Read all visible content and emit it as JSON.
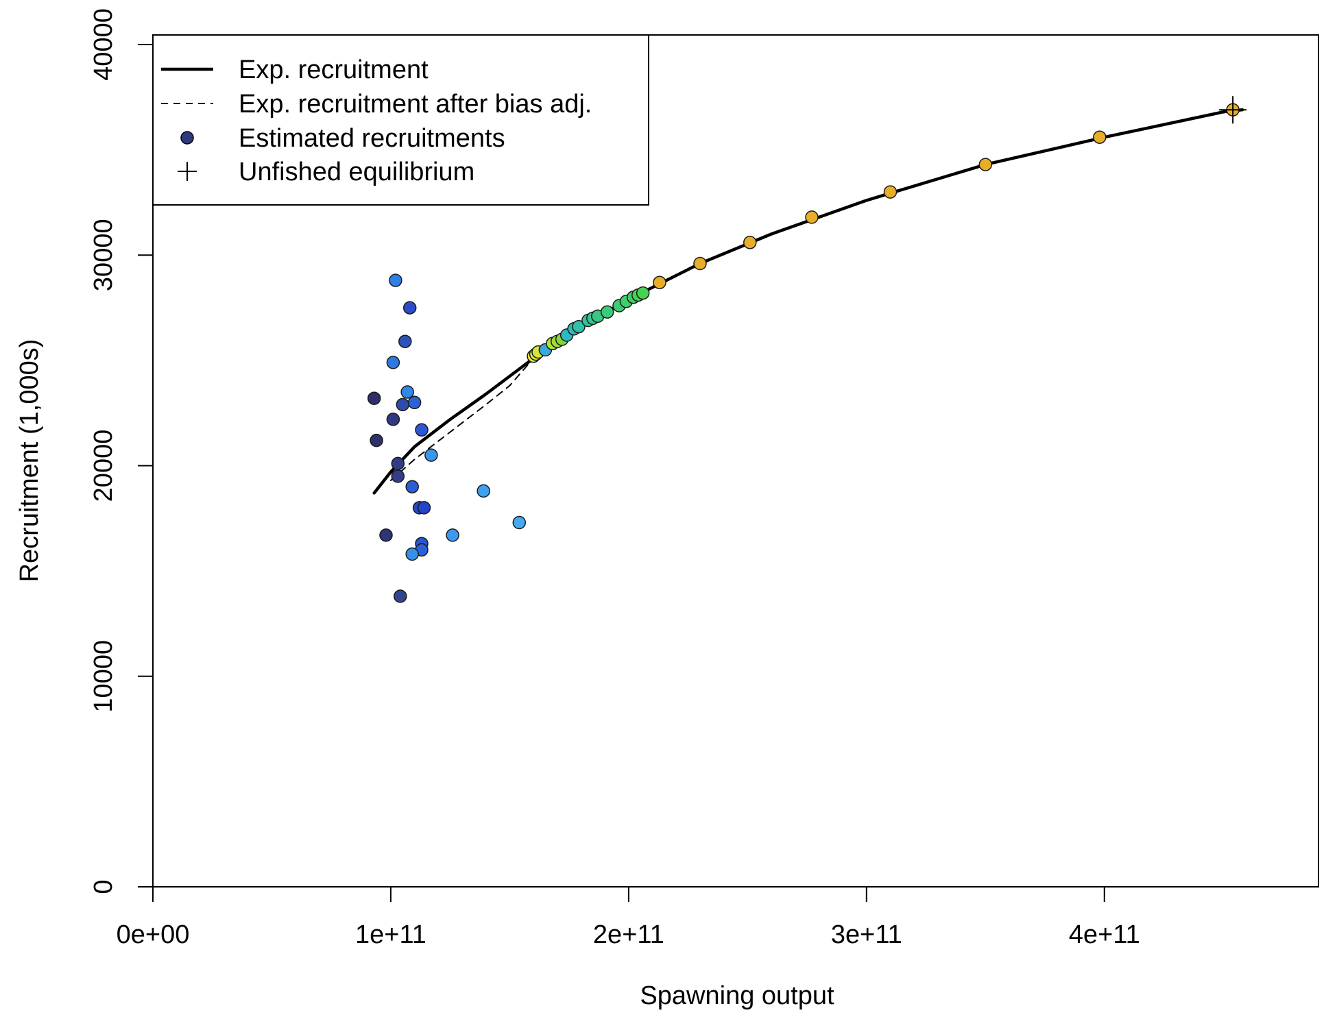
{
  "chart_data": {
    "type": "scatter",
    "title": "",
    "xlabel": "Spawning output",
    "ylabel": "Recruitment (1,000s)",
    "xlim": [
      0,
      490000000000
    ],
    "ylim": [
      0,
      40000
    ],
    "x_ticks": [
      0,
      100000000000,
      200000000000,
      300000000000,
      400000000000
    ],
    "x_tick_labels": [
      "0e+00",
      "1e+11",
      "2e+11",
      "3e+11",
      "4e+11"
    ],
    "y_ticks": [
      0,
      10000,
      20000,
      30000,
      40000
    ],
    "y_tick_labels": [
      "0",
      "10000",
      "20000",
      "30000",
      "40000"
    ],
    "grid": false,
    "legend": {
      "placement": "top-left",
      "entries": [
        {
          "label": "Exp. recruitment",
          "symbol": "solid-line"
        },
        {
          "label": "Exp. recruitment after bias adj.",
          "symbol": "dashed-line"
        },
        {
          "label": "Estimated recruitments",
          "symbol": "circle",
          "color": "#2e3a7e"
        },
        {
          "label": "Unfished equilibrium",
          "symbol": "plus"
        }
      ]
    },
    "series": [
      {
        "name": "Exp. recruitment",
        "kind": "line",
        "style": "solid",
        "color": "#000000",
        "points": [
          [
            93000000000,
            18700
          ],
          [
            100000000000,
            19700
          ],
          [
            110000000000,
            20900
          ],
          [
            125000000000,
            22200
          ],
          [
            140000000000,
            23400
          ],
          [
            160000000000,
            25100
          ],
          [
            180000000000,
            26600
          ],
          [
            200000000000,
            27900
          ],
          [
            230000000000,
            29600
          ],
          [
            260000000000,
            31000
          ],
          [
            300000000000,
            32600
          ],
          [
            350000000000,
            34300
          ],
          [
            400000000000,
            35600
          ],
          [
            450000000000,
            36800
          ],
          [
            458000000000,
            36900
          ]
        ]
      },
      {
        "name": "Exp. recruitment after bias adj.",
        "kind": "line",
        "style": "dashed",
        "color": "#000000",
        "points": [
          [
            100000000000,
            19300
          ],
          [
            110000000000,
            20300
          ],
          [
            125000000000,
            21600
          ],
          [
            140000000000,
            22900
          ],
          [
            150000000000,
            23800
          ],
          [
            160000000000,
            25100
          ],
          [
            180000000000,
            26600
          ],
          [
            200000000000,
            27900
          ],
          [
            230000000000,
            29600
          ],
          [
            260000000000,
            31000
          ],
          [
            300000000000,
            32600
          ],
          [
            350000000000,
            34300
          ],
          [
            400000000000,
            35600
          ],
          [
            450000000000,
            36800
          ],
          [
            458000000000,
            36900
          ]
        ]
      },
      {
        "name": "Estimated recruitments",
        "kind": "scatter",
        "points": [
          {
            "x": 93000000000,
            "y": 23200,
            "color": "#2e2f6a"
          },
          {
            "x": 94000000000,
            "y": 21200,
            "color": "#2e3170"
          },
          {
            "x": 98000000000,
            "y": 16700,
            "color": "#2f3475"
          },
          {
            "x": 101000000000,
            "y": 22200,
            "color": "#303a80"
          },
          {
            "x": 103000000000,
            "y": 20100,
            "color": "#303c85"
          },
          {
            "x": 103000000000,
            "y": 19500,
            "color": "#313f8a"
          },
          {
            "x": 104000000000,
            "y": 13800,
            "color": "#32448f"
          },
          {
            "x": 105000000000,
            "y": 22900,
            "color": "#2f4bb0"
          },
          {
            "x": 106000000000,
            "y": 25900,
            "color": "#2f52b8"
          },
          {
            "x": 108000000000,
            "y": 27500,
            "color": "#2d4cc8"
          },
          {
            "x": 109000000000,
            "y": 19000,
            "color": "#2c5cd6"
          },
          {
            "x": 110000000000,
            "y": 23000,
            "color": "#2a62d8"
          },
          {
            "x": 112000000000,
            "y": 18000,
            "color": "#2648c8"
          },
          {
            "x": 113000000000,
            "y": 16300,
            "color": "#2a56d4"
          },
          {
            "x": 113000000000,
            "y": 16000,
            "color": "#2b60d8"
          },
          {
            "x": 113000000000,
            "y": 21700,
            "color": "#2c58d8"
          },
          {
            "x": 114000000000,
            "y": 18000,
            "color": "#2444cc"
          },
          {
            "x": 101000000000,
            "y": 24900,
            "color": "#2f78e0"
          },
          {
            "x": 102000000000,
            "y": 28800,
            "color": "#2f80e4"
          },
          {
            "x": 107000000000,
            "y": 23500,
            "color": "#3288e6"
          },
          {
            "x": 109000000000,
            "y": 15800,
            "color": "#3590e8"
          },
          {
            "x": 117000000000,
            "y": 20500,
            "color": "#3a96ea"
          },
          {
            "x": 126000000000,
            "y": 16700,
            "color": "#3b9aec"
          },
          {
            "x": 139000000000,
            "y": 18800,
            "color": "#3fa0ee"
          },
          {
            "x": 154000000000,
            "y": 17300,
            "color": "#45a8f0"
          },
          {
            "x": 160000000000,
            "y": 25200,
            "color": "#e6e84a"
          },
          {
            "x": 161000000000,
            "y": 25300,
            "color": "#dde840"
          },
          {
            "x": 162000000000,
            "y": 25400,
            "color": "#d2e63c"
          },
          {
            "x": 165000000000,
            "y": 25500,
            "color": "#3aa8d8"
          },
          {
            "x": 168000000000,
            "y": 25800,
            "color": "#b2e234"
          },
          {
            "x": 170000000000,
            "y": 25900,
            "color": "#9ede34"
          },
          {
            "x": 172000000000,
            "y": 26000,
            "color": "#86d838"
          },
          {
            "x": 174000000000,
            "y": 26200,
            "color": "#2fb8c4"
          },
          {
            "x": 177000000000,
            "y": 26500,
            "color": "#30bcb6"
          },
          {
            "x": 179000000000,
            "y": 26600,
            "color": "#32c0a8"
          },
          {
            "x": 183000000000,
            "y": 26900,
            "color": "#34c49a"
          },
          {
            "x": 185000000000,
            "y": 27000,
            "color": "#36c68e"
          },
          {
            "x": 187000000000,
            "y": 27100,
            "color": "#38c884"
          },
          {
            "x": 191000000000,
            "y": 27300,
            "color": "#3aca7c"
          },
          {
            "x": 196000000000,
            "y": 27600,
            "color": "#3ccc74"
          },
          {
            "x": 199000000000,
            "y": 27800,
            "color": "#3ece6c"
          },
          {
            "x": 202000000000,
            "y": 28000,
            "color": "#40d064"
          },
          {
            "x": 204000000000,
            "y": 28100,
            "color": "#44d05c"
          },
          {
            "x": 206000000000,
            "y": 28200,
            "color": "#48d254"
          },
          {
            "x": 213000000000,
            "y": 28700,
            "color": "#e8ae2a"
          },
          {
            "x": 230000000000,
            "y": 29600,
            "color": "#e8ae2a"
          },
          {
            "x": 251000000000,
            "y": 30600,
            "color": "#e8ae2a"
          },
          {
            "x": 277000000000,
            "y": 31800,
            "color": "#e8ae2a"
          },
          {
            "x": 310000000000,
            "y": 33000,
            "color": "#e8ae2a"
          },
          {
            "x": 350000000000,
            "y": 34300,
            "color": "#e8ae2a"
          },
          {
            "x": 398000000000,
            "y": 35600,
            "color": "#e8ae2a"
          },
          {
            "x": 454000000000,
            "y": 36900,
            "color": "#e8ae2a"
          }
        ]
      },
      {
        "name": "Unfished equilibrium",
        "kind": "marker",
        "symbol": "plus",
        "points": [
          [
            454000000000,
            36900
          ]
        ]
      }
    ]
  }
}
